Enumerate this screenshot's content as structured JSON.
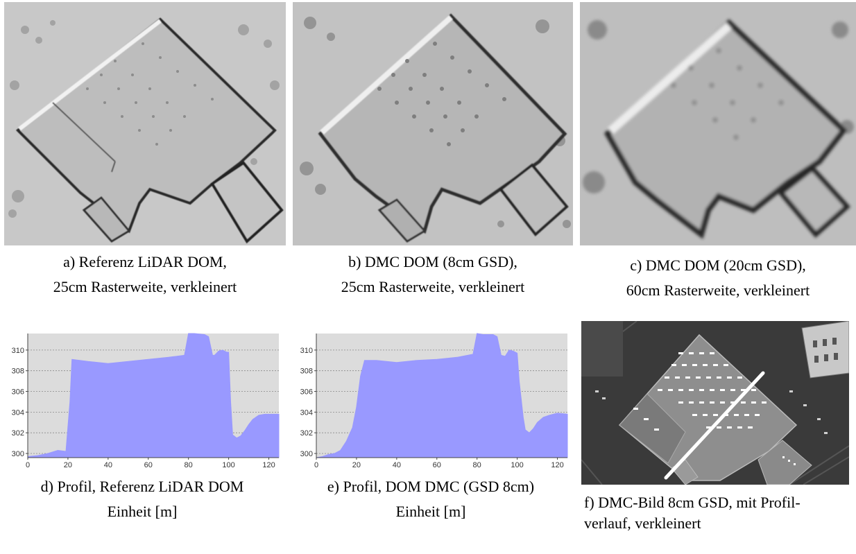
{
  "captions": {
    "a": {
      "line1": "a) Referenz LiDAR DOM,",
      "line2": "25cm Rasterweite, verkleinert"
    },
    "b": {
      "line1": "b) DMC DOM (8cm GSD),",
      "line2": "25cm Rasterweite, verkleinert"
    },
    "c": {
      "line1": "c) DMC DOM (20cm GSD),",
      "line2": "60cm Rasterweite, verkleinert"
    },
    "d": {
      "line1": "d) Profil, Referenz LiDAR DOM",
      "line2": "Einheit [m]"
    },
    "e": {
      "line1": "e) Profil, DOM DMC (GSD 8cm)",
      "line2": "Einheit [m]"
    },
    "f": {
      "line1": "f) DMC-Bild 8cm GSD, mit Profil-",
      "line2": "verlauf, verkleinert"
    }
  },
  "chart_data": [
    {
      "type": "area",
      "panel": "d",
      "xlim": [
        0,
        125
      ],
      "ylim": [
        299.6,
        311.6
      ],
      "xticks": [
        0,
        20,
        40,
        60,
        80,
        100,
        120
      ],
      "yticks": [
        300,
        302,
        304,
        306,
        308,
        310
      ],
      "grid": true,
      "fill_color": "#9999ff",
      "background": "#dcdcdc",
      "x": [
        0,
        5,
        10,
        15,
        19,
        21,
        22,
        30,
        40,
        50,
        60,
        70,
        78,
        80,
        83,
        88,
        90,
        92,
        93,
        95,
        97,
        99,
        100,
        101,
        102,
        104,
        106,
        108,
        110,
        112,
        115,
        118,
        121,
        125
      ],
      "y": [
        299.7,
        299.8,
        300.0,
        300.3,
        300.2,
        305.0,
        309.1,
        308.9,
        308.7,
        308.9,
        309.1,
        309.3,
        309.5,
        311.6,
        311.6,
        311.5,
        311.3,
        309.5,
        309.5,
        309.9,
        310.0,
        309.8,
        309.8,
        305.0,
        301.8,
        301.5,
        301.7,
        302.2,
        302.8,
        303.3,
        303.7,
        303.8,
        303.8,
        303.8
      ]
    },
    {
      "type": "area",
      "panel": "e",
      "xlim": [
        0,
        125
      ],
      "ylim": [
        299.6,
        311.6
      ],
      "xticks": [
        0,
        20,
        40,
        60,
        80,
        100,
        120
      ],
      "yticks": [
        300,
        302,
        304,
        306,
        308,
        310
      ],
      "grid": true,
      "fill_color": "#9999ff",
      "background": "#dcdcdc",
      "x": [
        0,
        3,
        6,
        9,
        12,
        15,
        18,
        20,
        22,
        24,
        30,
        40,
        50,
        60,
        70,
        78,
        80,
        83,
        88,
        90,
        92,
        94,
        96,
        98,
        100,
        101,
        103,
        104,
        106,
        108,
        110,
        113,
        116,
        120,
        125
      ],
      "y": [
        299.6,
        299.7,
        299.9,
        300.0,
        300.3,
        301.2,
        302.5,
        304.5,
        307.5,
        309.0,
        309.0,
        308.8,
        309.0,
        309.1,
        309.3,
        309.6,
        311.6,
        311.5,
        311.5,
        311.3,
        309.5,
        309.4,
        310.0,
        309.9,
        309.7,
        307.0,
        303.5,
        302.3,
        302.0,
        302.4,
        303.0,
        303.5,
        303.7,
        303.9,
        303.8
      ]
    }
  ],
  "icons": {
    "hillshade_a": "building-hillshade-lidar",
    "hillshade_b": "building-hillshade-dmc-8cm",
    "hillshade_c": "building-hillshade-dmc-20cm",
    "aerial_f": "aerial-photo-with-profile-line"
  }
}
